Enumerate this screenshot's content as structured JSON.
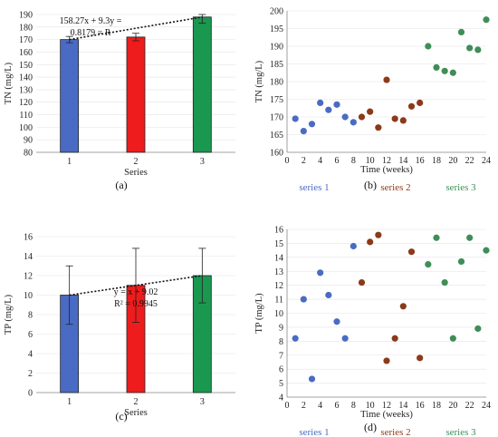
{
  "chart_data": [
    {
      "id": "a",
      "type": "bar",
      "panel_label": "(a)",
      "xlabel": "Series",
      "ylabel": "TN (mg/L)",
      "ylim": [
        80,
        190
      ],
      "ytick_step": 10,
      "categories": [
        "1",
        "2",
        "3"
      ],
      "values": [
        170,
        172,
        188
      ],
      "errors": [
        2.5,
        3,
        5
      ],
      "bar_colors": [
        "#4a6bc4",
        "#ee1c1c",
        "#1a9850"
      ],
      "trendline": true,
      "annotation": [
        "158.27x + 9.3y =",
        "0.8179 = R"
      ]
    },
    {
      "id": "b",
      "type": "scatter",
      "panel_label": "(b)",
      "xlabel": "Time (weeks)",
      "ylabel": "TN (mg/L)",
      "xlim": [
        0,
        24
      ],
      "xtick_step": 2,
      "ylim": [
        160,
        200
      ],
      "ytick_step": 5,
      "series": [
        {
          "name": "series 1",
          "color": "#4a6bc4",
          "points": [
            [
              1,
              169.5
            ],
            [
              2,
              166
            ],
            [
              3,
              168
            ],
            [
              4,
              174
            ],
            [
              5,
              172
            ],
            [
              6,
              173.5
            ],
            [
              7,
              170
            ],
            [
              8,
              168.5
            ]
          ]
        },
        {
          "name": "series 2",
          "color": "#8b3a1a",
          "points": [
            [
              9,
              170
            ],
            [
              10,
              171.5
            ],
            [
              11,
              167
            ],
            [
              12,
              180.5
            ],
            [
              13,
              169.5
            ],
            [
              14,
              169
            ],
            [
              15,
              173
            ],
            [
              16,
              174
            ]
          ]
        },
        {
          "name": "series 3",
          "color": "#3e8e57",
          "points": [
            [
              17,
              190
            ],
            [
              18,
              184
            ],
            [
              19,
              183
            ],
            [
              20,
              182.5
            ],
            [
              21,
              194
            ],
            [
              22,
              189.5
            ],
            [
              23,
              189
            ],
            [
              24,
              197.5
            ]
          ]
        }
      ]
    },
    {
      "id": "c",
      "type": "bar",
      "panel_label": "(c)",
      "xlabel": "Series",
      "ylabel": "TP (mg/L)",
      "ylim": [
        0,
        16
      ],
      "ytick_step": 2,
      "categories": [
        "1",
        "2",
        "3"
      ],
      "values": [
        10,
        11,
        12
      ],
      "errors": [
        3,
        3.8,
        2.8
      ],
      "bar_colors": [
        "#4a6bc4",
        "#ee1c1c",
        "#1a9850"
      ],
      "trendline": true,
      "annotation": [
        "y = x + 9.02",
        "R² = 0.9945"
      ]
    },
    {
      "id": "d",
      "type": "scatter",
      "panel_label": "(d)",
      "xlabel": "Time (weeks)",
      "ylabel": "TP (mg/L)",
      "xlim": [
        0,
        24
      ],
      "xtick_step": 2,
      "ylim": [
        4,
        16
      ],
      "ytick_step": 1,
      "series": [
        {
          "name": "series 1",
          "color": "#4a6bc4",
          "points": [
            [
              1,
              8.2
            ],
            [
              2,
              11
            ],
            [
              3,
              5.3
            ],
            [
              4,
              12.9
            ],
            [
              5,
              11.3
            ],
            [
              6,
              9.4
            ],
            [
              7,
              8.2
            ],
            [
              8,
              14.8
            ]
          ]
        },
        {
          "name": "series 2",
          "color": "#8b3a1a",
          "points": [
            [
              9,
              12.2
            ],
            [
              10,
              15.1
            ],
            [
              11,
              15.6
            ],
            [
              12,
              6.6
            ],
            [
              13,
              8.2
            ],
            [
              14,
              10.5
            ],
            [
              15,
              14.4
            ],
            [
              16,
              6.8
            ]
          ]
        },
        {
          "name": "series 3",
          "color": "#3e8e57",
          "points": [
            [
              17,
              13.5
            ],
            [
              18,
              15.4
            ],
            [
              19,
              12.2
            ],
            [
              20,
              8.2
            ],
            [
              21,
              13.7
            ],
            [
              22,
              15.4
            ],
            [
              23,
              8.9
            ],
            [
              24,
              14.5
            ]
          ]
        }
      ]
    }
  ]
}
